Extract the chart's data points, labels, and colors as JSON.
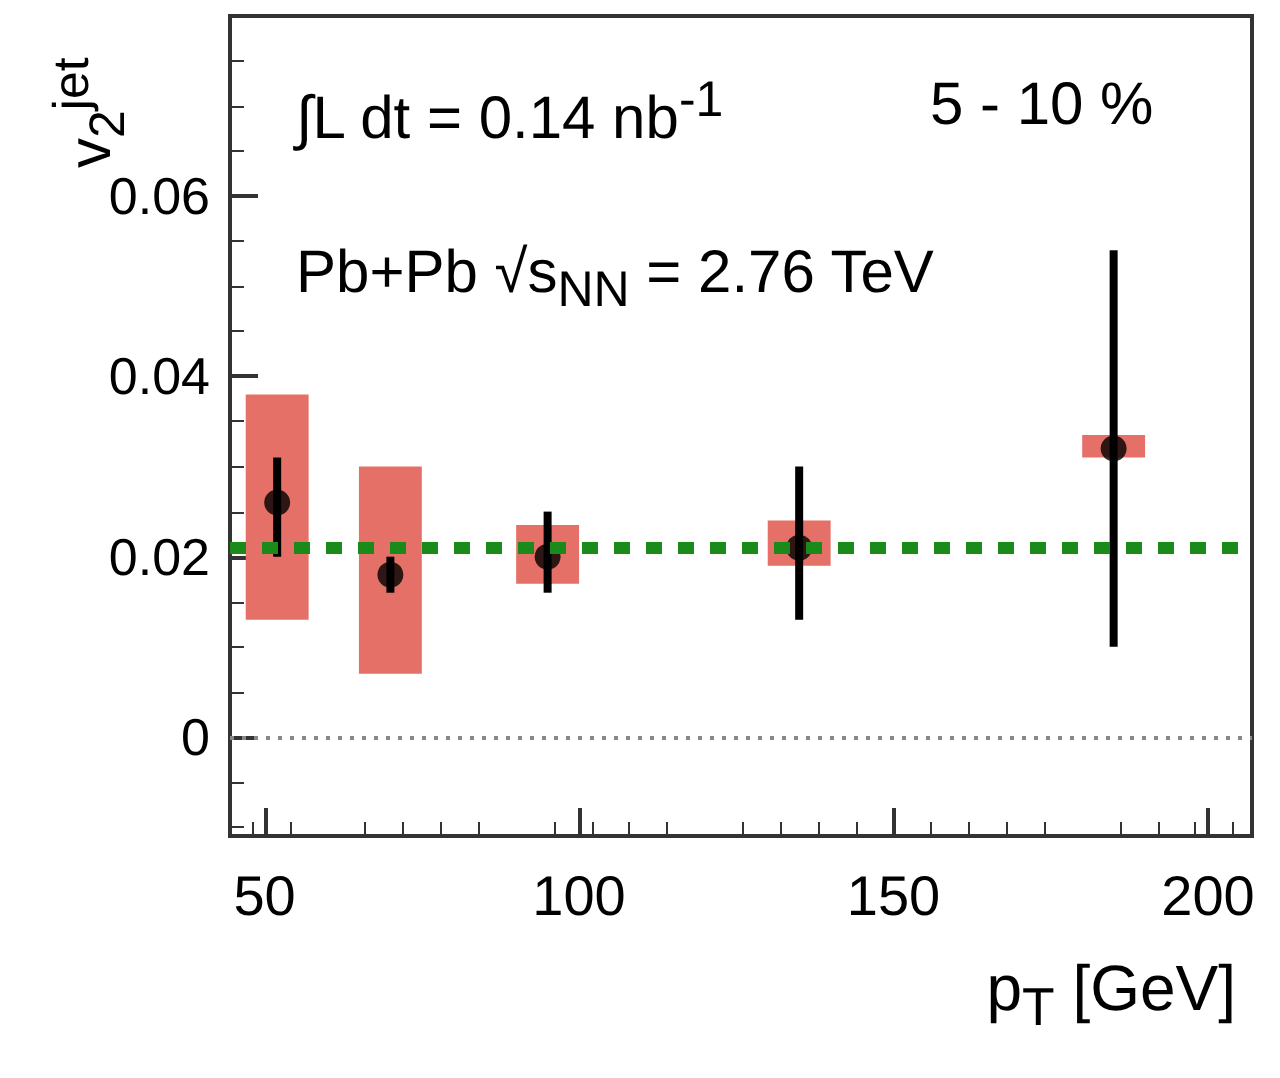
{
  "chart_data": {
    "type": "scatter",
    "xlabel": "p$_{T}$ [GeV]",
    "ylabel": "v$_{2}$$^{jet}$",
    "annotations": [
      "∫L dt = 0.14 nb$^{-1}$",
      "5 - 10 %",
      "Pb+Pb √s$_{NN}$ = 2.76 TeV"
    ],
    "xlim": [
      44.5,
      207
    ],
    "xticks": [
      50,
      100,
      150,
      200
    ],
    "ylim": [
      -0.011,
      0.08
    ],
    "yticks": [
      0,
      0.02,
      0.04,
      0.06
    ],
    "marker": "circle",
    "grid": false,
    "series": [
      {
        "type": "bar",
        "color": "#e57067",
        "x": [
          52,
          70,
          95,
          135,
          185
        ],
        "base": [
          0.013,
          0.007,
          0.017,
          0.019,
          0.031
        ],
        "values": [
          0.025,
          0.023,
          0.0065,
          0.005,
          0.0025
        ]
      },
      {
        "color": "#000000",
        "x": [
          52,
          70,
          95,
          135,
          185
        ],
        "values": [
          0.026,
          0.018,
          0.02,
          0.021,
          0.032
        ],
        "errors": [
          [
            0.02,
            0.031
          ],
          [
            0.016,
            0.02
          ],
          [
            0.016,
            0.025
          ],
          [
            0.013,
            0.03
          ],
          [
            0.01,
            0.054
          ]
        ]
      }
    ],
    "ref_lines": [
      {
        "axis": "y",
        "value": 0.021,
        "color": "#1a8a1a",
        "line_style": "dashed"
      },
      {
        "axis": "y",
        "value": 0,
        "color": "#888888",
        "line_style": "dotted"
      }
    ]
  }
}
